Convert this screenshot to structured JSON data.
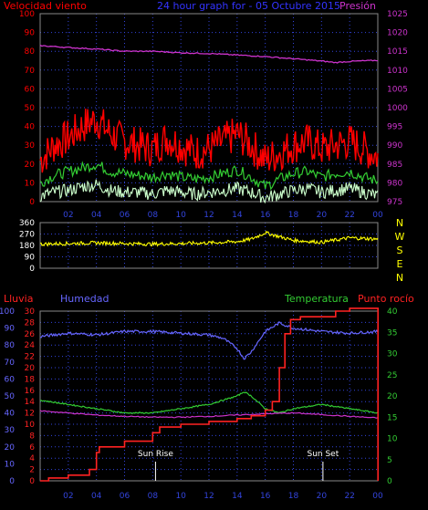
{
  "colors": {
    "wind_gust": "#ff0000",
    "wind_avg": "#33cc33",
    "wind_min": "#ccffcc",
    "pressure": "#cc33cc",
    "direction": "#ffff00",
    "rain": "#ff2222",
    "humidity": "#6666ff",
    "temperature": "#33cc33",
    "dewpoint": "#cc33cc",
    "grid": "#3344dd",
    "axis_text": "#ffffff"
  },
  "chart_data": [
    {
      "type": "line",
      "title": "24 hour graph for - 05 Octubre 2015",
      "left_title": "Velocidad viento",
      "right_title": "Presión",
      "x_ticks": [
        "02",
        "04",
        "06",
        "08",
        "10",
        "12",
        "14",
        "16",
        "18",
        "20",
        "22",
        "00"
      ],
      "y_left_ticks": [
        "0",
        "10",
        "20",
        "30",
        "40",
        "50",
        "60",
        "70",
        "80",
        "90",
        "100"
      ],
      "y_right_ticks": [
        "975",
        "980",
        "985",
        "990",
        "995",
        "1000",
        "1005",
        "1010",
        "1015",
        "1020",
        "1025"
      ],
      "y_left_range": [
        0,
        100
      ],
      "y_right_range": [
        975,
        1025
      ],
      "series": [
        {
          "key": "gust",
          "hours": [
            0,
            1,
            2,
            3,
            4,
            5,
            6,
            7,
            8,
            9,
            10,
            11,
            12,
            13,
            14,
            15,
            16,
            17,
            18,
            19,
            20,
            21,
            22,
            23,
            24
          ],
          "values": [
            22,
            30,
            34,
            40,
            44,
            36,
            32,
            30,
            28,
            34,
            30,
            26,
            28,
            32,
            36,
            30,
            22,
            26,
            30,
            32,
            28,
            30,
            32,
            28,
            24
          ]
        },
        {
          "key": "avg",
          "hours": [
            0,
            1,
            2,
            3,
            4,
            5,
            6,
            7,
            8,
            9,
            10,
            11,
            12,
            13,
            14,
            15,
            16,
            17,
            18,
            19,
            20,
            21,
            22,
            23,
            24
          ],
          "values": [
            10,
            14,
            16,
            18,
            20,
            16,
            15,
            14,
            13,
            15,
            13,
            12,
            13,
            15,
            17,
            13,
            8,
            12,
            15,
            16,
            13,
            15,
            16,
            13,
            11
          ]
        },
        {
          "key": "min",
          "hours": [
            0,
            1,
            2,
            3,
            4,
            5,
            6,
            7,
            8,
            9,
            10,
            11,
            12,
            13,
            14,
            15,
            16,
            17,
            18,
            19,
            20,
            21,
            22,
            23,
            24
          ],
          "values": [
            3,
            5,
            6,
            8,
            9,
            6,
            5,
            5,
            4,
            6,
            5,
            4,
            5,
            6,
            7,
            5,
            2,
            4,
            6,
            7,
            5,
            6,
            7,
            5,
            3
          ]
        },
        {
          "key": "pressure",
          "hours": [
            0,
            2,
            4,
            6,
            8,
            10,
            12,
            14,
            16,
            18,
            20,
            21,
            22,
            24
          ],
          "values": [
            1016.5,
            1016,
            1015.6,
            1015,
            1015,
            1014.6,
            1014.4,
            1014,
            1013.6,
            1013,
            1012.4,
            1012,
            1012.3,
            1012.6
          ]
        }
      ]
    },
    {
      "type": "line",
      "right_labels": [
        "N",
        "W",
        "S",
        "E",
        "N"
      ],
      "y_ticks": [
        "0",
        "90",
        "180",
        "270",
        "360"
      ],
      "y_range": [
        0,
        360
      ],
      "series": [
        {
          "key": "direction",
          "hours": [
            0,
            2,
            4,
            6,
            8,
            10,
            12,
            14,
            15,
            16,
            17,
            18,
            20,
            22,
            24
          ],
          "values": [
            190,
            195,
            200,
            195,
            190,
            195,
            200,
            210,
            230,
            280,
            250,
            220,
            205,
            240,
            230
          ]
        }
      ]
    },
    {
      "type": "line",
      "labels": {
        "rain": "Lluvia",
        "humidity": "Humedad",
        "temperature": "Temperatura",
        "dewpoint": "Punto rocío"
      },
      "annotations": {
        "sunrise": "Sun Rise",
        "sunset": "Sun Set",
        "sunrise_hour": 8.2,
        "sunset_hour": 20.1
      },
      "x_ticks": [
        "02",
        "04",
        "06",
        "08",
        "10",
        "12",
        "14",
        "16",
        "18",
        "20",
        "22",
        "00"
      ],
      "humidity_ticks": [
        "0",
        "10",
        "20",
        "30",
        "40",
        "50",
        "60",
        "70",
        "80",
        "90",
        "100"
      ],
      "rain_ticks": [
        "0",
        "2",
        "4",
        "6",
        "8",
        "10",
        "12",
        "14",
        "16",
        "18",
        "20",
        "22",
        "24",
        "26",
        "28",
        "30"
      ],
      "temp_ticks": [
        "0",
        "5",
        "10",
        "15",
        "20",
        "25",
        "30",
        "35",
        "40"
      ],
      "series": [
        {
          "key": "humidity",
          "axis": "pct",
          "hours": [
            0,
            2,
            4,
            6,
            8,
            10,
            12,
            13,
            14,
            14.5,
            15,
            16,
            17,
            18,
            20,
            22,
            24
          ],
          "values": [
            85,
            87,
            86,
            88,
            88,
            87,
            86,
            84,
            78,
            72,
            76,
            88,
            93,
            90,
            88,
            87,
            88
          ]
        },
        {
          "key": "temperature",
          "axis": "temp",
          "hours": [
            0,
            2,
            4,
            6,
            8,
            10,
            12,
            13,
            14,
            14.5,
            15,
            16,
            17,
            18,
            20,
            22,
            24
          ],
          "values": [
            19,
            18,
            17,
            16,
            16,
            17,
            18,
            19,
            20,
            21,
            20,
            17,
            16,
            17,
            18,
            17,
            16
          ]
        },
        {
          "key": "dewpoint",
          "axis": "temp",
          "hours": [
            0,
            2,
            4,
            6,
            8,
            10,
            12,
            14,
            16,
            18,
            20,
            22,
            24
          ],
          "values": [
            16.5,
            16,
            15.5,
            15.2,
            15,
            15,
            15.2,
            15.5,
            15.8,
            16,
            15.6,
            15.2,
            14.8
          ]
        },
        {
          "key": "rain",
          "axis": "rain",
          "hours": [
            0,
            0.6,
            2,
            3.5,
            4,
            4.2,
            6,
            8,
            8.5,
            10,
            12,
            14,
            15,
            16,
            16.5,
            17,
            17.4,
            17.8,
            18.5,
            19,
            21,
            22,
            24,
            24.01
          ],
          "values": [
            0,
            0.5,
            1,
            2,
            5,
            6,
            7,
            8.5,
            9.5,
            10,
            10.5,
            11,
            11.5,
            12.5,
            14,
            20,
            26,
            28.5,
            29,
            29,
            30,
            30.5,
            30.5,
            0
          ]
        }
      ]
    }
  ]
}
